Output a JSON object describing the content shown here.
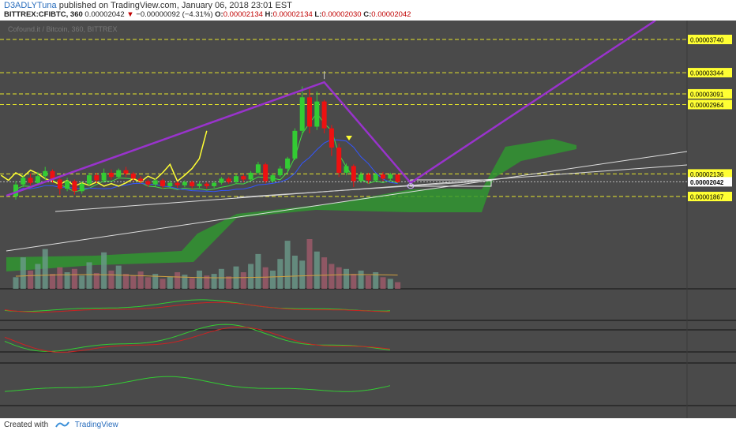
{
  "header": {
    "author": "D3ADLYTuna",
    "published_text": " published on TradingView.com, January 06, 2018 23:01 EST",
    "symbol": "BITTREX:CFIBTC, 360",
    "last": "0.00002042",
    "change": "−0.00000092 (−4.31%)",
    "open_label": "O:",
    "open": "0.00002134",
    "high_label": "H:",
    "high": "0.00002134",
    "low_label": "L:",
    "low": "0.00002030",
    "close_label": "C:",
    "close": "0.00002042"
  },
  "watermark": "Cofound.it / Bitcoin, 360, BITTREX",
  "footer": {
    "created_with": "Created with",
    "brand": "TradingView"
  },
  "colors": {
    "background": "#4a4a4a",
    "up": "#33cc33",
    "down": "#ee1111",
    "trend": "#9933cc",
    "yellow": "#ffff33",
    "cloud": "#2e9a2e"
  },
  "chart_data": {
    "type": "candlestick",
    "ylim": [
      1.6e-05,
      4e-05
    ],
    "price_levels": [
      "0.00003740",
      "0.00003344",
      "0.00003091",
      "0.00002964",
      "0.00002136",
      "0.00001867"
    ],
    "current_price_label": "0.00002042",
    "candles": [
      [
        1.87e-05,
        2.01e-05,
        1.83e-05,
        2.05e-05
      ],
      [
        2.01e-05,
        2.09e-05,
        1.98e-05,
        2.12e-05
      ],
      [
        2.09e-05,
        2.03e-05,
        2e-05,
        2.14e-05
      ],
      [
        2.03e-05,
        2.11e-05,
        2.01e-05,
        2.16e-05
      ],
      [
        2.11e-05,
        2.17e-05,
        2.06e-05,
        2.22e-05
      ],
      [
        2.17e-05,
        2.07e-05,
        2.03e-05,
        2.19e-05
      ],
      [
        2.07e-05,
        1.96e-05,
        1.89e-05,
        2.09e-05
      ],
      [
        1.96e-05,
        2.05e-05,
        1.93e-05,
        2.09e-05
      ],
      [
        2.05e-05,
        1.93e-05,
        1.89e-05,
        2.07e-05
      ],
      [
        1.93e-05,
        2.02e-05,
        1.9e-05,
        2.05e-05
      ],
      [
        2.02e-05,
        2.12e-05,
        1.99e-05,
        2.15e-05
      ],
      [
        2.12e-05,
        2.06e-05,
        2.02e-05,
        2.15e-05
      ],
      [
        2.06e-05,
        2.15e-05,
        2.03e-05,
        2.2e-05
      ],
      [
        2.15e-05,
        2.1e-05,
        2.07e-05,
        2.19e-05
      ],
      [
        2.1e-05,
        2.18e-05,
        2.08e-05,
        2.2e-05
      ],
      [
        2.18e-05,
        2.14e-05,
        2.1e-05,
        2.22e-05
      ],
      [
        2.14e-05,
        2.08e-05,
        2.05e-05,
        2.16e-05
      ],
      [
        2.08e-05,
        2.05e-05,
        2.02e-05,
        2.11e-05
      ],
      [
        2.05e-05,
        2.01e-05,
        1.98e-05,
        2.07e-05
      ],
      [
        2.01e-05,
        2.06e-05,
        1.99e-05,
        2.08e-05
      ],
      [
        2.06e-05,
        1.99e-05,
        1.96e-05,
        2.08e-05
      ],
      [
        1.99e-05,
        2.03e-05,
        1.96e-05,
        2.06e-05
      ],
      [
        2.03e-05,
        2e-05,
        1.97e-05,
        2.05e-05
      ],
      [
        2e-05,
        2.04e-05,
        1.98e-05,
        2.06e-05
      ],
      [
        2.04e-05,
        1.99e-05,
        1.96e-05,
        2.06e-05
      ],
      [
        1.99e-05,
        2.02e-05,
        1.97e-05,
        2.05e-05
      ],
      [
        2.02e-05,
        1.99e-05,
        1.96e-05,
        2.04e-05
      ],
      [
        1.99e-05,
        2.03e-05,
        1.97e-05,
        2.05e-05
      ],
      [
        2.03e-05,
        2.08e-05,
        2.01e-05,
        2.1e-05
      ],
      [
        2.08e-05,
        2.04e-05,
        2.02e-05,
        2.1e-05
      ],
      [
        2.04e-05,
        2.11e-05,
        2.02e-05,
        2.13e-05
      ],
      [
        2.11e-05,
        2.07e-05,
        2.04e-05,
        2.13e-05
      ],
      [
        2.07e-05,
        2.15e-05,
        2.05e-05,
        2.17e-05
      ],
      [
        2.15e-05,
        2.25e-05,
        2.13e-05,
        2.28e-05
      ],
      [
        2.25e-05,
        2.05e-05,
        2.02e-05,
        2.27e-05
      ],
      [
        2.05e-05,
        2.12e-05,
        2.03e-05,
        2.14e-05
      ],
      [
        2.12e-05,
        2.2e-05,
        2.1e-05,
        2.23e-05
      ],
      [
        2.2e-05,
        2.32e-05,
        2.17e-05,
        2.34e-05
      ],
      [
        2.32e-05,
        2.65e-05,
        2.3e-05,
        2.68e-05
      ],
      [
        2.65e-05,
        3.05e-05,
        2.6e-05,
        3.18e-05
      ],
      [
        3.05e-05,
        2.7e-05,
        2.62e-05,
        3.15e-05
      ],
      [
        2.7e-05,
        3e-05,
        2.66e-05,
        3.12e-05
      ],
      [
        3e-05,
        2.68e-05,
        2.62e-05,
        3.02e-05
      ],
      [
        2.68e-05,
        2.45e-05,
        2.35e-05,
        2.72e-05
      ],
      [
        2.45e-05,
        2.15e-05,
        2.1e-05,
        2.5e-05
      ],
      [
        2.15e-05,
        2.23e-05,
        2.12e-05,
        2.26e-05
      ],
      [
        2.23e-05,
        2.05e-05,
        1.98e-05,
        2.25e-05
      ],
      [
        2.05e-05,
        2.13e-05,
        2.03e-05,
        2.16e-05
      ],
      [
        2.13e-05,
        2.06e-05,
        2.02e-05,
        2.15e-05
      ],
      [
        2.06e-05,
        2.13e-05,
        2.04e-05,
        2.15e-05
      ],
      [
        2.13e-05,
        2.08e-05,
        2.05e-05,
        2.16e-05
      ],
      [
        2.08e-05,
        2.13e-05,
        2.06e-05,
        2.15e-05
      ],
      [
        2.13e-05,
        2.04e-05,
        2.03e-05,
        2.13e-05
      ]
    ],
    "volume": [
      14,
      38,
      22,
      30,
      48,
      18,
      26,
      20,
      24,
      16,
      32,
      19,
      44,
      22,
      28,
      18,
      16,
      21,
      14,
      18,
      12,
      15,
      20,
      17,
      13,
      22,
      16,
      18,
      24,
      15,
      27,
      20,
      30,
      42,
      26,
      22,
      36,
      58,
      40,
      34,
      60,
      45,
      38,
      30,
      26,
      24,
      18,
      22,
      16,
      20,
      14,
      12,
      8
    ],
    "projection_price": 3.4e-05
  }
}
